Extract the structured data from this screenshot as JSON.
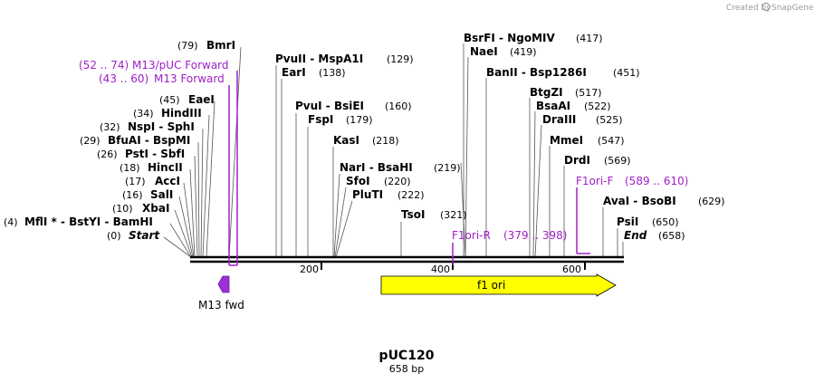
{
  "credit": {
    "text": "Created by",
    "brand": "SnapGene"
  },
  "title": "pUC120",
  "length_label": "658 bp",
  "ticks": [
    "200",
    "400",
    "600"
  ],
  "sites": [
    {
      "prefix": "(0)",
      "name": "Start",
      "suffix": ""
    },
    {
      "prefix": "(4)",
      "name": "MflI *  - BstYI  - BamHI",
      "suffix": ""
    },
    {
      "prefix": "(10)",
      "name": "XbaI",
      "suffix": ""
    },
    {
      "prefix": "(16)",
      "name": "SalI",
      "suffix": ""
    },
    {
      "prefix": "(17)",
      "name": "AccI",
      "suffix": ""
    },
    {
      "prefix": "(18)",
      "name": "HincII",
      "suffix": ""
    },
    {
      "prefix": "(26)",
      "name": "PstI  - SbfI",
      "suffix": ""
    },
    {
      "prefix": "(29)",
      "name": "BfuAI  - BspMI",
      "suffix": ""
    },
    {
      "prefix": "(32)",
      "name": "NspI  - SphI",
      "suffix": ""
    },
    {
      "prefix": "(34)",
      "name": "HindIII",
      "suffix": ""
    },
    {
      "prefix": "(45)",
      "name": "EaeI",
      "suffix": ""
    },
    {
      "prefix": "(79)",
      "name": "BmrI",
      "suffix": ""
    },
    {
      "prefix": "",
      "name": "PvuII  - MspA1I",
      "suffix": "(129)"
    },
    {
      "prefix": "",
      "name": "EarI",
      "suffix": "(138)"
    },
    {
      "prefix": "",
      "name": "PvuI  - BsiEI",
      "suffix": "(160)"
    },
    {
      "prefix": "",
      "name": "FspI",
      "suffix": "(179)"
    },
    {
      "prefix": "",
      "name": "KasI",
      "suffix": "(218)"
    },
    {
      "prefix": "",
      "name": "NarI  - BsaHI",
      "suffix": "(219)"
    },
    {
      "prefix": "",
      "name": "SfoI",
      "suffix": "(220)"
    },
    {
      "prefix": "",
      "name": "PluTI",
      "suffix": "(222)"
    },
    {
      "prefix": "",
      "name": "TsoI",
      "suffix": "(321)"
    },
    {
      "prefix": "",
      "name": "BsrFI  - NgoMIV",
      "suffix": "(417)"
    },
    {
      "prefix": "",
      "name": "NaeI",
      "suffix": "(419)"
    },
    {
      "prefix": "",
      "name": "BanII  - Bsp1286I",
      "suffix": "(451)"
    },
    {
      "prefix": "",
      "name": "BtgZI",
      "suffix": "(517)"
    },
    {
      "prefix": "",
      "name": "BsaAI",
      "suffix": "(522)"
    },
    {
      "prefix": "",
      "name": "DraIII",
      "suffix": "(525)"
    },
    {
      "prefix": "",
      "name": "MmeI",
      "suffix": "(547)"
    },
    {
      "prefix": "",
      "name": "DrdI",
      "suffix": "(569)"
    },
    {
      "prefix": "",
      "name": "AvaI  - BsoBI",
      "suffix": "(629)"
    },
    {
      "prefix": "",
      "name": "PsiI",
      "suffix": "(650)"
    },
    {
      "prefix": "",
      "name": "End",
      "suffix": "(658)"
    }
  ],
  "primers": [
    {
      "range": "(52 .. 74)",
      "name": "M13/pUC Forward"
    },
    {
      "range": "(43 .. 60)",
      "name": "M13 Forward"
    },
    {
      "name": "F1ori-R",
      "range": "(379 .. 398)"
    },
    {
      "name": "F1ori-F",
      "range": "(589 .. 610)"
    }
  ],
  "features": [
    {
      "name": "M13 fwd",
      "color": "#9b30d9"
    },
    {
      "name": "f1 ori",
      "color": "#ffff00"
    }
  ],
  "colors": {
    "primer": "#a020c8",
    "backbone": "#000000"
  }
}
